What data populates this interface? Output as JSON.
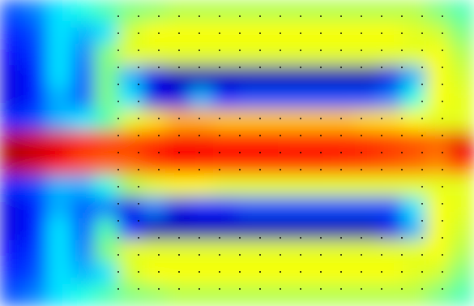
{
  "chart_data": {
    "type": "heatmap",
    "tick_labels": false,
    "zlim": [
      0,
      1
    ],
    "cells": [
      [
        0.2,
        0.25,
        0.35,
        0.4,
        0.45,
        0.5,
        0.52,
        0.55,
        0.55,
        0.55,
        0.55,
        0.55,
        0.55,
        0.55,
        0.55,
        0.55,
        0.55,
        0.55,
        0.5,
        0.45
      ],
      [
        0.15,
        0.2,
        0.35,
        0.3,
        0.35,
        0.58,
        0.62,
        0.62,
        0.62,
        0.62,
        0.62,
        0.62,
        0.62,
        0.62,
        0.62,
        0.62,
        0.62,
        0.6,
        0.58,
        0.5
      ],
      [
        0.12,
        0.18,
        0.35,
        0.25,
        0.5,
        0.6,
        0.6,
        0.6,
        0.6,
        0.6,
        0.6,
        0.6,
        0.6,
        0.6,
        0.6,
        0.6,
        0.6,
        0.6,
        0.62,
        0.55
      ],
      [
        0.1,
        0.15,
        0.35,
        0.22,
        0.5,
        0.3,
        0.1,
        0.05,
        0.05,
        0.05,
        0.05,
        0.05,
        0.05,
        0.05,
        0.05,
        0.05,
        0.1,
        0.3,
        0.62,
        0.58
      ],
      [
        0.1,
        0.15,
        0.3,
        0.22,
        0.5,
        0.35,
        0.1,
        0.1,
        0.3,
        0.15,
        0.2,
        0.2,
        0.2,
        0.2,
        0.2,
        0.2,
        0.25,
        0.4,
        0.62,
        0.6
      ],
      [
        0.15,
        0.2,
        0.3,
        0.35,
        0.45,
        0.6,
        0.65,
        0.7,
        0.7,
        0.68,
        0.68,
        0.68,
        0.68,
        0.68,
        0.68,
        0.66,
        0.65,
        0.62,
        0.6,
        0.6
      ],
      [
        0.95,
        0.92,
        0.9,
        0.85,
        0.82,
        0.82,
        0.85,
        0.88,
        0.88,
        0.86,
        0.86,
        0.86,
        0.85,
        0.85,
        0.85,
        0.84,
        0.82,
        0.8,
        0.78,
        0.9
      ],
      [
        0.95,
        0.92,
        0.88,
        0.8,
        0.78,
        0.78,
        0.82,
        0.86,
        0.85,
        0.84,
        0.84,
        0.84,
        0.84,
        0.84,
        0.83,
        0.82,
        0.8,
        0.78,
        0.75,
        0.85
      ],
      [
        0.15,
        0.2,
        0.3,
        0.3,
        0.4,
        0.55,
        0.6,
        0.62,
        0.62,
        0.6,
        0.6,
        0.6,
        0.6,
        0.6,
        0.6,
        0.6,
        0.6,
        0.6,
        0.6,
        0.6
      ],
      [
        0.1,
        0.15,
        0.3,
        0.22,
        0.25,
        0.1,
        0.25,
        0.1,
        0.15,
        0.15,
        0.2,
        0.2,
        0.2,
        0.2,
        0.2,
        0.2,
        0.2,
        0.35,
        0.62,
        0.6
      ],
      [
        0.1,
        0.15,
        0.35,
        0.22,
        0.45,
        0.15,
        0.05,
        0.05,
        0.05,
        0.05,
        0.05,
        0.05,
        0.05,
        0.05,
        0.05,
        0.05,
        0.1,
        0.3,
        0.62,
        0.58
      ],
      [
        0.12,
        0.18,
        0.35,
        0.25,
        0.5,
        0.6,
        0.6,
        0.6,
        0.6,
        0.6,
        0.6,
        0.6,
        0.6,
        0.6,
        0.6,
        0.6,
        0.6,
        0.6,
        0.62,
        0.55
      ],
      [
        0.15,
        0.2,
        0.35,
        0.3,
        0.35,
        0.58,
        0.62,
        0.62,
        0.62,
        0.62,
        0.62,
        0.62,
        0.62,
        0.62,
        0.62,
        0.62,
        0.62,
        0.6,
        0.58,
        0.5
      ],
      [
        0.2,
        0.25,
        0.35,
        0.4,
        0.45,
        0.5,
        0.52,
        0.55,
        0.55,
        0.55,
        0.55,
        0.55,
        0.55,
        0.55,
        0.55,
        0.55,
        0.55,
        0.55,
        0.5,
        0.45
      ]
    ]
  }
}
